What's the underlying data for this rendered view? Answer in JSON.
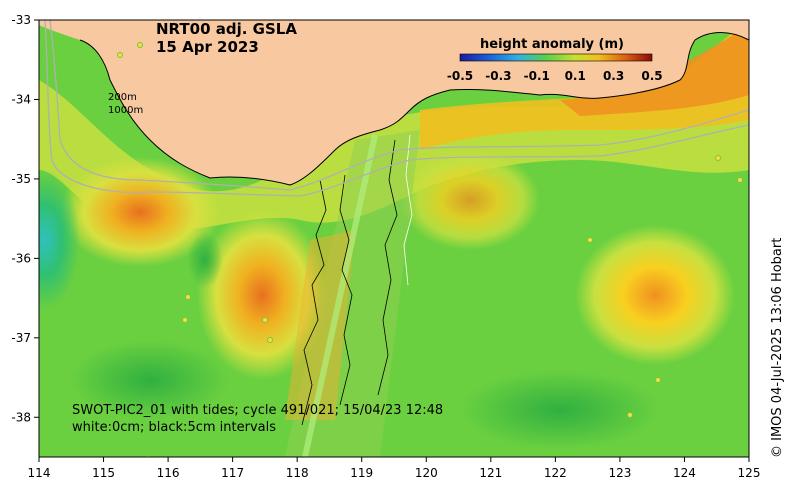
{
  "title": {
    "product": "NRT00 adj. GSLA",
    "date": "15 Apr 2023"
  },
  "colorbar": {
    "label": "height anomaly (m)",
    "ticks": [
      "-0.5",
      "-0.3",
      "-0.1",
      "0.1",
      "0.3",
      "0.5"
    ],
    "colors": [
      "#1a1aa0",
      "#1f5fd6",
      "#2fb0e0",
      "#5ad04a",
      "#e8d030",
      "#f09020",
      "#c02010",
      "#8a0a0a"
    ]
  },
  "isobaths": [
    "200m",
    "1000m"
  ],
  "swot_info": {
    "line1": "SWOT-PIC2_01 with tides; cycle 491/021; 15/04/23 12:48",
    "line2": "white:0cm; black:5cm intervals"
  },
  "credit": "© IMOS 04-Jul-2025 13:06 Hobart",
  "axes": {
    "x_ticks": [
      "114",
      "115",
      "116",
      "117",
      "118",
      "119",
      "120",
      "121",
      "122",
      "123",
      "124",
      "125"
    ],
    "y_ticks": [
      "-33",
      "-34",
      "-35",
      "-36",
      "-37",
      "-38"
    ],
    "x_range": [
      114,
      125
    ],
    "y_range": [
      -38.5,
      -33
    ]
  },
  "colors": {
    "land": "#f8c8a0",
    "ocean_base": "#6ad040"
  }
}
